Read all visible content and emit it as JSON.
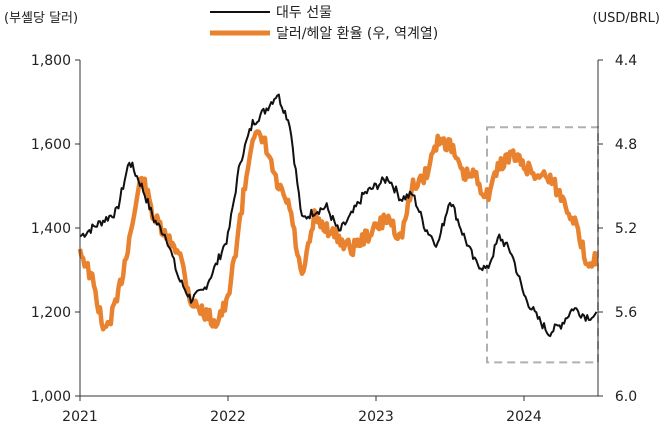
{
  "chart_data": {
    "type": "line",
    "title": "",
    "ylabel_left": "(부셸당 달러)",
    "ylabel_right": "(USD/BRL)",
    "x_ticks": [
      "2021",
      "2022",
      "2023",
      "2024"
    ],
    "x_range": [
      "2021-01",
      "2024-07"
    ],
    "y_left_ticks": [
      "1,000",
      "1,200",
      "1,400",
      "1,600",
      "1,800"
    ],
    "y_left_range": [
      1000,
      1800
    ],
    "y_right_ticks": [
      "4.4",
      "4.8",
      "5.2",
      "5.6",
      "6.0"
    ],
    "y_right_range": [
      6.0,
      4.4
    ],
    "y_right_inverted": true,
    "legend_position": "top-center",
    "highlight_box": {
      "x_range": [
        "2023-10",
        "2024-07"
      ],
      "y_range_left": [
        1080,
        1640
      ],
      "style": "dashed"
    },
    "series": [
      {
        "name": "대두 선물",
        "axis": "left",
        "color": "#111111",
        "x": [
          "2021-01",
          "2021-02",
          "2021-03",
          "2021-04",
          "2021-05",
          "2021-06",
          "2021-07",
          "2021-08",
          "2021-09",
          "2021-10",
          "2021-11",
          "2021-12",
          "2022-01",
          "2022-02",
          "2022-03",
          "2022-04",
          "2022-05",
          "2022-06",
          "2022-07",
          "2022-08",
          "2022-09",
          "2022-10",
          "2022-11",
          "2022-12",
          "2023-01",
          "2023-02",
          "2023-03",
          "2023-04",
          "2023-05",
          "2023-06",
          "2023-07",
          "2023-08",
          "2023-09",
          "2023-10",
          "2023-11",
          "2023-12",
          "2024-01",
          "2024-02",
          "2024-03",
          "2024-04",
          "2024-05",
          "2024-06"
        ],
        "values": [
          1380,
          1400,
          1420,
          1440,
          1560,
          1500,
          1420,
          1380,
          1280,
          1230,
          1250,
          1310,
          1380,
          1560,
          1650,
          1680,
          1720,
          1650,
          1420,
          1440,
          1450,
          1390,
          1430,
          1480,
          1500,
          1520,
          1470,
          1480,
          1400,
          1360,
          1470,
          1390,
          1320,
          1300,
          1380,
          1340,
          1240,
          1190,
          1150,
          1170,
          1210,
          1190
        ]
      },
      {
        "name": "달러/헤알 환율 (우, 역계열)",
        "axis": "right",
        "color": "#E8822E",
        "x": [
          "2021-01",
          "2021-02",
          "2021-03",
          "2021-04",
          "2021-05",
          "2021-06",
          "2021-07",
          "2021-08",
          "2021-09",
          "2021-10",
          "2021-11",
          "2021-12",
          "2022-01",
          "2022-02",
          "2022-03",
          "2022-04",
          "2022-05",
          "2022-06",
          "2022-07",
          "2022-08",
          "2022-09",
          "2022-10",
          "2022-11",
          "2022-12",
          "2023-01",
          "2023-02",
          "2023-03",
          "2023-04",
          "2023-05",
          "2023-06",
          "2023-07",
          "2023-08",
          "2023-09",
          "2023-10",
          "2023-11",
          "2023-12",
          "2024-01",
          "2024-02",
          "2024-03",
          "2024-04",
          "2024-05",
          "2024-06"
        ],
        "values": [
          5.3,
          5.45,
          5.7,
          5.55,
          5.25,
          4.95,
          5.15,
          5.25,
          5.3,
          5.55,
          5.6,
          5.65,
          5.55,
          5.15,
          4.75,
          4.8,
          5.0,
          5.1,
          5.45,
          5.15,
          5.2,
          5.25,
          5.3,
          5.25,
          5.2,
          5.15,
          5.25,
          5.0,
          4.95,
          4.78,
          4.8,
          4.95,
          4.95,
          5.05,
          4.9,
          4.85,
          4.9,
          4.95,
          4.95,
          5.05,
          5.15,
          5.35
        ]
      }
    ]
  }
}
